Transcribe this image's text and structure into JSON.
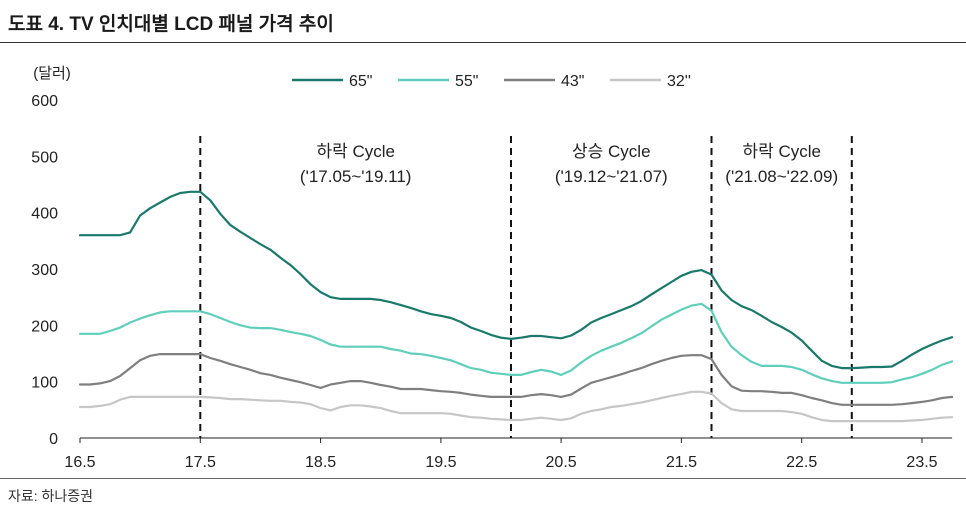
{
  "source": "자료: 하나증권",
  "chart_data": {
    "type": "line",
    "title": "도표 4. TV 인치대별 LCD 패널 가격 추이",
    "ylabel": "(달러)",
    "ylim": [
      0,
      600
    ],
    "yticks": [
      0,
      100,
      200,
      300,
      400,
      500,
      600
    ],
    "xticks": [
      "16.5",
      "17.5",
      "18.5",
      "19.5",
      "20.5",
      "21.5",
      "22.5",
      "23.5"
    ],
    "grid": false,
    "legend_position": "top-center",
    "x": [
      "16.5",
      "16.6",
      "16.7",
      "16.8",
      "16.9",
      "16.10",
      "16.11",
      "16.12",
      "17.1",
      "17.2",
      "17.3",
      "17.4",
      "17.5",
      "17.6",
      "17.7",
      "17.8",
      "17.9",
      "17.10",
      "17.11",
      "17.12",
      "18.1",
      "18.2",
      "18.3",
      "18.4",
      "18.5",
      "18.6",
      "18.7",
      "18.8",
      "18.9",
      "18.10",
      "18.11",
      "18.12",
      "19.1",
      "19.2",
      "19.3",
      "19.4",
      "19.5",
      "19.6",
      "19.7",
      "19.8",
      "19.9",
      "19.10",
      "19.11",
      "19.12",
      "20.1",
      "20.2",
      "20.3",
      "20.4",
      "20.5",
      "20.6",
      "20.7",
      "20.8",
      "20.9",
      "20.10",
      "20.11",
      "20.12",
      "21.1",
      "21.2",
      "21.3",
      "21.4",
      "21.5",
      "21.6",
      "21.7",
      "21.8",
      "21.9",
      "21.10",
      "21.11",
      "21.12",
      "22.1",
      "22.2",
      "22.3",
      "22.4",
      "22.5",
      "22.6",
      "22.7",
      "22.8",
      "22.9",
      "22.10",
      "22.11",
      "22.12",
      "23.1",
      "23.2",
      "23.3",
      "23.4",
      "23.5",
      "23.6",
      "23.7",
      "23.8"
    ],
    "series": [
      {
        "name": "65\"",
        "color": "#19796b",
        "values": [
          360,
          360,
          360,
          360,
          360,
          365,
          395,
          408,
          418,
          428,
          435,
          437,
          437,
          422,
          398,
          378,
          366,
          355,
          344,
          334,
          320,
          307,
          291,
          273,
          259,
          250,
          247,
          247,
          247,
          247,
          245,
          241,
          236,
          231,
          225,
          220,
          217,
          213,
          206,
          196,
          190,
          183,
          178,
          176,
          178,
          181,
          181,
          179,
          177,
          182,
          192,
          205,
          213,
          220,
          227,
          234,
          243,
          255,
          266,
          277,
          288,
          295,
          298,
          290,
          262,
          245,
          234,
          227,
          217,
          206,
          197,
          187,
          173,
          155,
          137,
          128,
          124,
          124,
          125,
          126,
          126,
          127,
          137,
          148,
          158,
          166,
          173,
          179
        ]
      },
      {
        "name": "55\"",
        "color": "#5fcfbb",
        "values": [
          185,
          185,
          185,
          190,
          196,
          205,
          212,
          218,
          223,
          225,
          225,
          225,
          225,
          220,
          213,
          206,
          200,
          196,
          195,
          195,
          192,
          188,
          185,
          181,
          174,
          166,
          162,
          162,
          162,
          162,
          162,
          158,
          155,
          150,
          149,
          146,
          142,
          138,
          131,
          124,
          121,
          116,
          114,
          112,
          112,
          117,
          121,
          118,
          112,
          120,
          134,
          146,
          155,
          162,
          169,
          177,
          186,
          198,
          210,
          219,
          228,
          235,
          238,
          226,
          188,
          162,
          147,
          135,
          128,
          128,
          128,
          126,
          121,
          113,
          106,
          101,
          98,
          98,
          98,
          98,
          98,
          99,
          104,
          108,
          114,
          121,
          130,
          136
        ]
      },
      {
        "name": "43\"",
        "color": "#7f7f7f",
        "values": [
          95,
          95,
          97,
          101,
          110,
          124,
          138,
          146,
          149,
          149,
          149,
          149,
          149,
          142,
          137,
          131,
          126,
          121,
          115,
          112,
          107,
          103,
          99,
          94,
          89,
          95,
          98,
          101,
          101,
          98,
          94,
          91,
          87,
          87,
          87,
          85,
          83,
          82,
          80,
          77,
          75,
          73,
          73,
          73,
          73,
          76,
          78,
          76,
          73,
          77,
          88,
          98,
          103,
          108,
          113,
          119,
          124,
          131,
          137,
          142,
          146,
          147,
          147,
          140,
          112,
          92,
          84,
          83,
          83,
          82,
          80,
          80,
          76,
          71,
          67,
          62,
          59,
          59,
          59,
          59,
          59,
          59,
          60,
          62,
          64,
          67,
          71,
          73
        ]
      },
      {
        "name": "32''",
        "color": "#c6c6c6",
        "values": [
          55,
          55,
          57,
          60,
          68,
          73,
          73,
          73,
          73,
          73,
          73,
          73,
          73,
          72,
          71,
          69,
          69,
          68,
          67,
          66,
          66,
          64,
          63,
          60,
          53,
          49,
          55,
          58,
          58,
          56,
          53,
          48,
          44,
          44,
          44,
          44,
          44,
          43,
          40,
          37,
          36,
          34,
          33,
          32,
          32,
          34,
          36,
          34,
          32,
          35,
          43,
          48,
          51,
          55,
          57,
          60,
          63,
          67,
          71,
          75,
          78,
          82,
          82,
          79,
          62,
          51,
          48,
          48,
          48,
          48,
          48,
          46,
          43,
          37,
          32,
          30,
          30,
          30,
          30,
          30,
          30,
          30,
          30,
          31,
          32,
          34,
          36,
          37
        ]
      }
    ],
    "cycle_dividers": [
      "17.5",
      "19.12",
      "21.8",
      "22.10"
    ],
    "annotations": [
      {
        "label": "하락 Cycle",
        "period": "('17.05~'19.11)"
      },
      {
        "label": "상승 Cycle",
        "period": "('19.12~'21.07)"
      },
      {
        "label": "하락 Cycle",
        "period": "('21.08~'22.09)"
      }
    ]
  }
}
